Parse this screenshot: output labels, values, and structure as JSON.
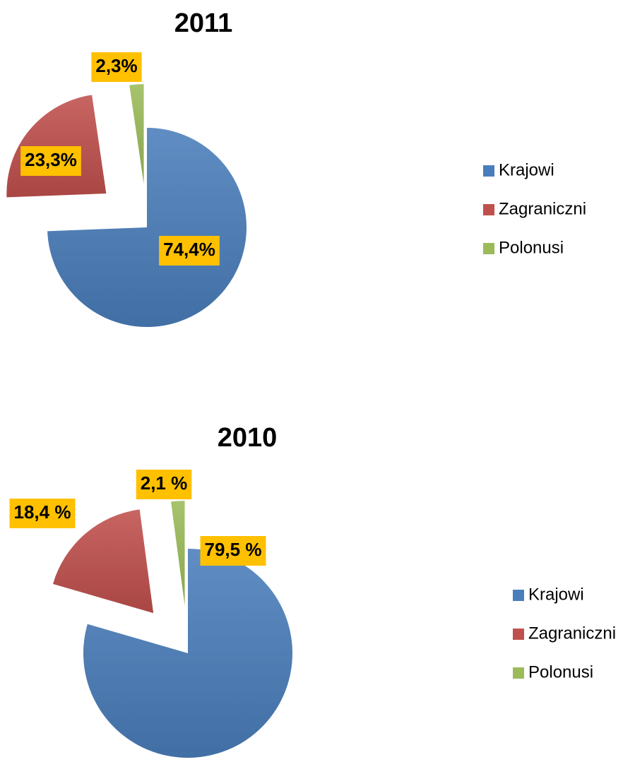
{
  "chart_data": [
    {
      "type": "pie",
      "title": "2011",
      "categories": [
        "Krajowi",
        "Zagraniczni",
        "Polonusi"
      ],
      "values": [
        74.4,
        23.3,
        2.3
      ],
      "value_labels": [
        "74,4%",
        "23,3%",
        "2,3%"
      ],
      "colors": [
        "#4a7ebb",
        "#c0504d",
        "#9bbb59"
      ],
      "legend": "right"
    },
    {
      "type": "pie",
      "title": "2010",
      "categories": [
        "Krajowi",
        "Zagraniczni",
        "Polonusi"
      ],
      "values": [
        79.5,
        18.4,
        2.1
      ],
      "value_labels": [
        "79,5 %",
        "18,4 %",
        "2,1 %"
      ],
      "colors": [
        "#4a7ebb",
        "#c0504d",
        "#9bbb59"
      ],
      "legend": "right"
    }
  ]
}
